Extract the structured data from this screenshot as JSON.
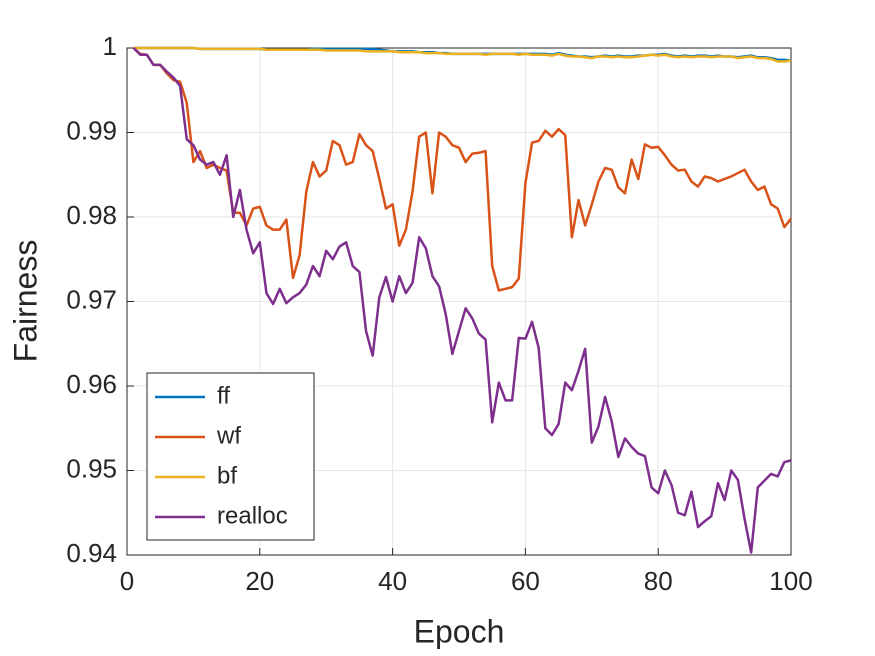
{
  "chart_data": {
    "type": "line",
    "x_label": "Epoch",
    "y_label": "Fairness",
    "x": [
      1,
      2,
      3,
      4,
      5,
      6,
      7,
      8,
      9,
      10,
      11,
      12,
      13,
      14,
      15,
      16,
      17,
      18,
      19,
      20,
      21,
      22,
      23,
      24,
      25,
      26,
      27,
      28,
      29,
      30,
      31,
      32,
      33,
      34,
      35,
      36,
      37,
      38,
      39,
      40,
      41,
      42,
      43,
      44,
      45,
      46,
      47,
      48,
      49,
      50,
      51,
      52,
      53,
      54,
      55,
      56,
      57,
      58,
      59,
      60,
      61,
      62,
      63,
      64,
      65,
      66,
      67,
      68,
      69,
      70,
      71,
      72,
      73,
      74,
      75,
      76,
      77,
      78,
      79,
      80,
      81,
      82,
      83,
      84,
      85,
      86,
      87,
      88,
      89,
      90,
      91,
      92,
      93,
      94,
      95,
      96,
      97,
      98,
      99,
      100
    ],
    "series": [
      {
        "name": "ff",
        "color": "#0072BD",
        "values": [
          1,
          1,
          1,
          1,
          1,
          1,
          1,
          1,
          1,
          1,
          0.9999,
          0.9999,
          0.9999,
          0.9999,
          0.9999,
          0.9999,
          0.9999,
          0.9999,
          0.9999,
          0.9999,
          0.9998,
          0.9998,
          0.9998,
          0.9998,
          0.9998,
          0.9998,
          0.9998,
          0.9999,
          0.9999,
          0.9999,
          0.9999,
          0.9999,
          0.9999,
          0.9999,
          0.9999,
          0.9999,
          0.9999,
          0.9998,
          0.9997,
          0.9996,
          0.9996,
          0.9996,
          0.9996,
          0.9995,
          0.9995,
          0.9995,
          0.9994,
          0.9994,
          0.9993,
          0.9993,
          0.9993,
          0.9993,
          0.9993,
          0.9993,
          0.9993,
          0.9993,
          0.9993,
          0.9993,
          0.9993,
          0.9993,
          0.9993,
          0.9993,
          0.9993,
          0.9992,
          0.9994,
          0.9992,
          0.9991,
          0.999,
          0.999,
          0.9989,
          0.999,
          0.9991,
          0.999,
          0.9991,
          0.999,
          0.999,
          0.9991,
          0.9991,
          0.9992,
          0.9992,
          0.9993,
          0.9991,
          0.999,
          0.9991,
          0.999,
          0.9991,
          0.9991,
          0.999,
          0.9991,
          0.999,
          0.999,
          0.9989,
          0.999,
          0.9991,
          0.9989,
          0.9989,
          0.9988,
          0.9986,
          0.9986,
          0.9985
        ]
      },
      {
        "name": "wf",
        "color": "#D95319",
        "values": [
          1,
          0.9993,
          0.9992,
          0.998,
          0.998,
          0.997,
          0.9962,
          0.996,
          0.9935,
          0.9865,
          0.9878,
          0.9858,
          0.9862,
          0.9858,
          0.9855,
          0.9805,
          0.9805,
          0.979,
          0.981,
          0.9812,
          0.979,
          0.9785,
          0.9785,
          0.9797,
          0.9728,
          0.9755,
          0.983,
          0.9865,
          0.9848,
          0.9855,
          0.989,
          0.9885,
          0.9862,
          0.9865,
          0.9898,
          0.9885,
          0.9878,
          0.9845,
          0.981,
          0.9815,
          0.9766,
          0.9785,
          0.983,
          0.9895,
          0.99,
          0.9828,
          0.99,
          0.9895,
          0.9885,
          0.9882,
          0.9865,
          0.9875,
          0.9876,
          0.9878,
          0.9742,
          0.9713,
          0.9715,
          0.9717,
          0.9727,
          0.984,
          0.9888,
          0.989,
          0.9902,
          0.9895,
          0.9904,
          0.9897,
          0.9776,
          0.982,
          0.979,
          0.9815,
          0.9842,
          0.9858,
          0.9856,
          0.9835,
          0.9828,
          0.9868,
          0.9845,
          0.9886,
          0.9882,
          0.9883,
          0.9873,
          0.9862,
          0.9855,
          0.9856,
          0.9842,
          0.9836,
          0.9848,
          0.9846,
          0.9842,
          0.9845,
          0.9848,
          0.9852,
          0.9856,
          0.9842,
          0.9832,
          0.9836,
          0.9815,
          0.981,
          0.9788,
          0.9798
        ]
      },
      {
        "name": "bf",
        "color": "#EDB120",
        "values": [
          1,
          1,
          1,
          1,
          1,
          1,
          1,
          1,
          1,
          1,
          0.9999,
          0.9999,
          0.9999,
          0.9999,
          0.9999,
          0.9999,
          0.9999,
          0.9999,
          0.9999,
          0.9999,
          0.9998,
          0.9998,
          0.9998,
          0.9998,
          0.9998,
          0.9998,
          0.9998,
          0.9998,
          0.9998,
          0.9997,
          0.9997,
          0.9997,
          0.9997,
          0.9997,
          0.9997,
          0.9996,
          0.9996,
          0.9996,
          0.9996,
          0.9996,
          0.9995,
          0.9995,
          0.9995,
          0.9995,
          0.9994,
          0.9994,
          0.9994,
          0.9993,
          0.9993,
          0.9993,
          0.9993,
          0.9993,
          0.9993,
          0.9992,
          0.9993,
          0.9993,
          0.9993,
          0.9993,
          0.9992,
          0.9993,
          0.9992,
          0.9992,
          0.9992,
          0.9991,
          0.9993,
          0.9991,
          0.999,
          0.999,
          0.9989,
          0.9988,
          0.999,
          0.999,
          0.9989,
          0.999,
          0.9989,
          0.9989,
          0.999,
          0.9991,
          0.9992,
          0.9991,
          0.9992,
          0.999,
          0.9989,
          0.999,
          0.9989,
          0.999,
          0.999,
          0.9989,
          0.999,
          0.999,
          0.999,
          0.9988,
          0.9989,
          0.999,
          0.9988,
          0.9988,
          0.9987,
          0.9984,
          0.9984,
          0.9985
        ]
      },
      {
        "name": "realloc",
        "color": "#7E2F8E",
        "values": [
          1,
          0.9992,
          0.9992,
          0.998,
          0.998,
          0.9972,
          0.9965,
          0.9955,
          0.9892,
          0.9885,
          0.9868,
          0.9862,
          0.9865,
          0.985,
          0.9873,
          0.98,
          0.9832,
          0.9785,
          0.9757,
          0.977,
          0.971,
          0.9697,
          0.9715,
          0.9698,
          0.9705,
          0.971,
          0.972,
          0.9742,
          0.973,
          0.976,
          0.975,
          0.9765,
          0.977,
          0.9742,
          0.9735,
          0.9665,
          0.9636,
          0.9705,
          0.9729,
          0.97,
          0.973,
          0.971,
          0.9722,
          0.9776,
          0.9763,
          0.973,
          0.9718,
          0.9685,
          0.9638,
          0.9665,
          0.9692,
          0.968,
          0.9662,
          0.9655,
          0.9557,
          0.9604,
          0.9583,
          0.9583,
          0.9657,
          0.9656,
          0.9676,
          0.9645,
          0.955,
          0.9542,
          0.9555,
          0.9604,
          0.9595,
          0.9618,
          0.9644,
          0.9533,
          0.9552,
          0.9587,
          0.9558,
          0.9516,
          0.9538,
          0.9528,
          0.952,
          0.9517,
          0.948,
          0.9473,
          0.95,
          0.9483,
          0.945,
          0.9447,
          0.9475,
          0.9433,
          0.944,
          0.9446,
          0.9485,
          0.9465,
          0.95,
          0.9489,
          0.9443,
          0.9403,
          0.948,
          0.9488,
          0.9496,
          0.9493,
          0.951,
          0.9512
        ]
      }
    ],
    "xlim": [
      0,
      100
    ],
    "xticks": [
      0,
      20,
      40,
      60,
      80,
      100
    ],
    "ylim": [
      0.94,
      1
    ],
    "yticks": [
      0.94,
      0.95,
      0.96,
      0.97,
      0.98,
      0.99,
      1
    ],
    "grid": true,
    "legend": "lower left"
  }
}
